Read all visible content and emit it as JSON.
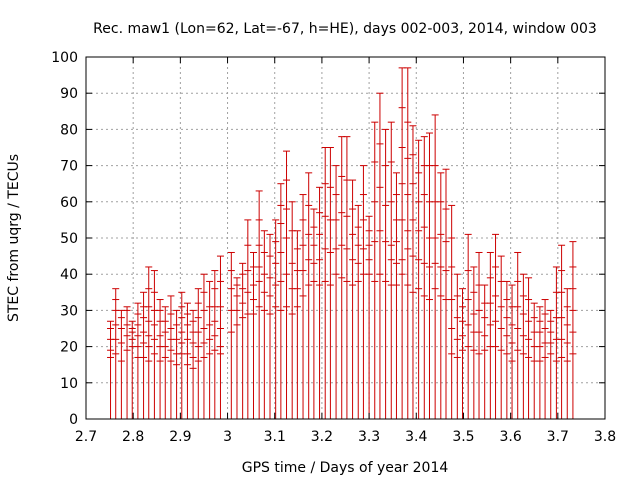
{
  "chart_data": {
    "type": "line",
    "title": "Rec. maw1 (Lon=62, Lat=-67, h=HE), days 002-003, 2014, window 003",
    "xlabel": "GPS time / Days of year 2014",
    "ylabel": "STEC from uqrg / TECUs",
    "xlim": [
      2.7,
      3.8
    ],
    "ylim": [
      0,
      100
    ],
    "xticks": [
      "2.7",
      "2.8",
      "2.9",
      "3",
      "3.1",
      "3.2",
      "3.3",
      "3.4",
      "3.5",
      "3.6",
      "3.7",
      "3.8"
    ],
    "yticks": [
      "0",
      "10",
      "20",
      "30",
      "40",
      "50",
      "60",
      "70",
      "80",
      "90",
      "100"
    ],
    "grid": true,
    "color": "#cc0000",
    "bars": [
      {
        "x": 2.752,
        "lo": 17,
        "hi": 27,
        "ticks": [
          17,
          19,
          22,
          25,
          27
        ]
      },
      {
        "x": 2.763,
        "lo": 18,
        "hi": 36,
        "ticks": [
          18,
          22,
          26,
          30,
          33,
          36
        ]
      },
      {
        "x": 2.775,
        "lo": 16,
        "hi": 30,
        "ticks": [
          16,
          21,
          25,
          28,
          30
        ]
      },
      {
        "x": 2.787,
        "lo": 19,
        "hi": 31,
        "ticks": [
          19,
          23,
          26,
          30,
          31
        ]
      },
      {
        "x": 2.798,
        "lo": 20,
        "hi": 27,
        "ticks": [
          20,
          22,
          24,
          25,
          27
        ]
      },
      {
        "x": 2.81,
        "lo": 17,
        "hi": 32,
        "ticks": [
          17,
          20,
          23,
          26,
          29,
          32
        ]
      },
      {
        "x": 2.822,
        "lo": 17,
        "hi": 35,
        "ticks": [
          17,
          21,
          24,
          28,
          31,
          35
        ]
      },
      {
        "x": 2.833,
        "lo": 16,
        "hi": 42,
        "ticks": [
          16,
          20,
          23,
          27,
          31,
          36,
          42
        ]
      },
      {
        "x": 2.845,
        "lo": 18,
        "hi": 41,
        "ticks": [
          18,
          22,
          26,
          30,
          35,
          41
        ]
      },
      {
        "x": 2.857,
        "lo": 16,
        "hi": 33,
        "ticks": [
          16,
          20,
          23,
          27,
          30,
          33
        ]
      },
      {
        "x": 2.868,
        "lo": 17,
        "hi": 31,
        "ticks": [
          17,
          20,
          24,
          27,
          31
        ]
      },
      {
        "x": 2.88,
        "lo": 16,
        "hi": 34,
        "ticks": [
          16,
          19,
          22,
          25,
          29,
          34
        ]
      },
      {
        "x": 2.892,
        "lo": 15,
        "hi": 30,
        "ticks": [
          15,
          18,
          22,
          26,
          30
        ]
      },
      {
        "x": 2.903,
        "lo": 18,
        "hi": 35,
        "ticks": [
          18,
          21,
          24,
          28,
          31,
          35
        ]
      },
      {
        "x": 2.915,
        "lo": 15,
        "hi": 32,
        "ticks": [
          15,
          18,
          22,
          26,
          29,
          32
        ]
      },
      {
        "x": 2.927,
        "lo": 14,
        "hi": 30,
        "ticks": [
          14,
          17,
          21,
          24,
          27,
          30
        ]
      },
      {
        "x": 2.938,
        "lo": 16,
        "hi": 36,
        "ticks": [
          16,
          20,
          24,
          28,
          32,
          36
        ]
      },
      {
        "x": 2.95,
        "lo": 17,
        "hi": 40,
        "ticks": [
          17,
          21,
          25,
          30,
          35,
          40
        ]
      },
      {
        "x": 2.962,
        "lo": 18,
        "hi": 38,
        "ticks": [
          18,
          22,
          26,
          31,
          38
        ]
      },
      {
        "x": 2.973,
        "lo": 19,
        "hi": 41,
        "ticks": [
          19,
          23,
          27,
          31,
          36,
          41
        ]
      },
      {
        "x": 2.985,
        "lo": 18,
        "hi": 45,
        "ticks": [
          18,
          20,
          25,
          31,
          38,
          45
        ]
      },
      {
        "x": 3.008,
        "lo": 24,
        "hi": 46,
        "ticks": [
          24,
          30,
          36,
          41,
          46
        ]
      },
      {
        "x": 3.02,
        "lo": 26,
        "hi": 39,
        "ticks": [
          26,
          30,
          34,
          37,
          39
        ]
      },
      {
        "x": 3.032,
        "lo": 28,
        "hi": 43,
        "ticks": [
          28,
          32,
          36,
          40,
          43
        ]
      },
      {
        "x": 3.043,
        "lo": 29,
        "hi": 55,
        "ticks": [
          29,
          35,
          41,
          48,
          55
        ]
      },
      {
        "x": 3.055,
        "lo": 29,
        "hi": 46,
        "ticks": [
          29,
          33,
          37,
          42,
          46
        ]
      },
      {
        "x": 3.067,
        "lo": 31,
        "hi": 63,
        "ticks": [
          31,
          38,
          42,
          48,
          55,
          63
        ]
      },
      {
        "x": 3.078,
        "lo": 30,
        "hi": 52,
        "ticks": [
          30,
          35,
          40,
          46,
          52
        ]
      },
      {
        "x": 3.09,
        "lo": 29,
        "hi": 51,
        "ticks": [
          29,
          34,
          39,
          45,
          51
        ]
      },
      {
        "x": 3.102,
        "lo": 31,
        "hi": 55,
        "ticks": [
          31,
          37,
          43,
          49,
          55
        ]
      },
      {
        "x": 3.113,
        "lo": 30,
        "hi": 65,
        "ticks": [
          30,
          38,
          46,
          54,
          59,
          65
        ]
      },
      {
        "x": 3.125,
        "lo": 31,
        "hi": 74,
        "ticks": [
          31,
          40,
          50,
          58,
          66,
          74
        ]
      },
      {
        "x": 3.137,
        "lo": 29,
        "hi": 60,
        "ticks": [
          29,
          36,
          43,
          52,
          60
        ]
      },
      {
        "x": 3.148,
        "lo": 31,
        "hi": 52,
        "ticks": [
          31,
          36,
          41,
          47,
          52
        ]
      },
      {
        "x": 3.16,
        "lo": 34,
        "hi": 62,
        "ticks": [
          34,
          41,
          48,
          55,
          62
        ]
      },
      {
        "x": 3.172,
        "lo": 37,
        "hi": 68,
        "ticks": [
          37,
          44,
          51,
          59,
          68
        ]
      },
      {
        "x": 3.183,
        "lo": 38,
        "hi": 58,
        "ticks": [
          38,
          43,
          48,
          53,
          58
        ]
      },
      {
        "x": 3.195,
        "lo": 37,
        "hi": 64,
        "ticks": [
          37,
          44,
          51,
          57,
          64
        ]
      },
      {
        "x": 3.207,
        "lo": 38,
        "hi": 75,
        "ticks": [
          38,
          47,
          56,
          65,
          75
        ]
      },
      {
        "x": 3.218,
        "lo": 37,
        "hi": 75,
        "ticks": [
          37,
          46,
          55,
          64,
          75
        ]
      },
      {
        "x": 3.23,
        "lo": 40,
        "hi": 70,
        "ticks": [
          40,
          47,
          55,
          62,
          70
        ]
      },
      {
        "x": 3.242,
        "lo": 39,
        "hi": 78,
        "ticks": [
          39,
          48,
          57,
          67,
          78
        ]
      },
      {
        "x": 3.253,
        "lo": 38,
        "hi": 78,
        "ticks": [
          38,
          47,
          56,
          66,
          78
        ]
      },
      {
        "x": 3.265,
        "lo": 37,
        "hi": 66,
        "ticks": [
          37,
          44,
          51,
          58,
          66
        ]
      },
      {
        "x": 3.277,
        "lo": 38,
        "hi": 59,
        "ticks": [
          38,
          43,
          48,
          53,
          59
        ]
      },
      {
        "x": 3.288,
        "lo": 40,
        "hi": 70,
        "ticks": [
          40,
          47,
          55,
          62,
          70
        ]
      },
      {
        "x": 3.3,
        "lo": 40,
        "hi": 56,
        "ticks": [
          40,
          44,
          48,
          52,
          56
        ]
      },
      {
        "x": 3.312,
        "lo": 38,
        "hi": 82,
        "ticks": [
          38,
          49,
          60,
          71,
          82
        ]
      },
      {
        "x": 3.323,
        "lo": 40,
        "hi": 90,
        "ticks": [
          40,
          52,
          64,
          76,
          90
        ]
      },
      {
        "x": 3.335,
        "lo": 38,
        "hi": 80,
        "ticks": [
          38,
          49,
          59,
          70,
          80
        ]
      },
      {
        "x": 3.347,
        "lo": 37,
        "hi": 82,
        "ticks": [
          37,
          44,
          48,
          60,
          71,
          82
        ]
      },
      {
        "x": 3.358,
        "lo": 37,
        "hi": 68,
        "ticks": [
          37,
          43,
          49,
          55,
          62,
          68
        ]
      },
      {
        "x": 3.37,
        "lo": 40,
        "hi": 97,
        "ticks": [
          40,
          44,
          55,
          65,
          75,
          86,
          97
        ]
      },
      {
        "x": 3.382,
        "lo": 37,
        "hi": 97,
        "ticks": [
          37,
          47,
          52,
          62,
          72,
          82,
          97
        ]
      },
      {
        "x": 3.393,
        "lo": 35,
        "hi": 81,
        "ticks": [
          35,
          45,
          55,
          65,
          73,
          81
        ]
      },
      {
        "x": 3.405,
        "lo": 36,
        "hi": 77,
        "ticks": [
          36,
          44,
          52,
          60,
          68,
          77
        ]
      },
      {
        "x": 3.417,
        "lo": 34,
        "hi": 78,
        "ticks": [
          34,
          43,
          53,
          62,
          70,
          78
        ]
      },
      {
        "x": 3.428,
        "lo": 33,
        "hi": 79,
        "ticks": [
          33,
          42,
          50,
          60,
          70,
          79
        ]
      },
      {
        "x": 3.44,
        "lo": 36,
        "hi": 84,
        "ticks": [
          36,
          43,
          50,
          60,
          70,
          84
        ]
      },
      {
        "x": 3.452,
        "lo": 34,
        "hi": 68,
        "ticks": [
          34,
          42,
          51,
          60,
          68
        ]
      },
      {
        "x": 3.463,
        "lo": 33,
        "hi": 69,
        "ticks": [
          33,
          41,
          49,
          58,
          69
        ]
      },
      {
        "x": 3.475,
        "lo": 18,
        "hi": 59,
        "ticks": [
          18,
          25,
          33,
          42,
          50,
          59
        ]
      },
      {
        "x": 3.487,
        "lo": 17,
        "hi": 40,
        "ticks": [
          17,
          22,
          28,
          34,
          40
        ]
      },
      {
        "x": 3.498,
        "lo": 19,
        "hi": 36,
        "ticks": [
          19,
          23,
          27,
          31,
          36
        ]
      },
      {
        "x": 3.51,
        "lo": 20,
        "hi": 51,
        "ticks": [
          20,
          26,
          33,
          41,
          51
        ]
      },
      {
        "x": 3.522,
        "lo": 19,
        "hi": 42,
        "ticks": [
          19,
          24,
          29,
          35,
          42
        ]
      },
      {
        "x": 3.533,
        "lo": 18,
        "hi": 46,
        "ticks": [
          18,
          24,
          30,
          37,
          46
        ]
      },
      {
        "x": 3.545,
        "lo": 19,
        "hi": 37,
        "ticks": [
          19,
          23,
          28,
          32,
          37
        ]
      },
      {
        "x": 3.557,
        "lo": 20,
        "hi": 46,
        "ticks": [
          20,
          26,
          32,
          39,
          46
        ]
      },
      {
        "x": 3.568,
        "lo": 20,
        "hi": 51,
        "ticks": [
          20,
          27,
          34,
          42,
          51
        ]
      },
      {
        "x": 3.58,
        "lo": 19,
        "hi": 45,
        "ticks": [
          19,
          25,
          31,
          38,
          45
        ]
      },
      {
        "x": 3.592,
        "lo": 18,
        "hi": 38,
        "ticks": [
          18,
          23,
          28,
          33,
          38
        ]
      },
      {
        "x": 3.603,
        "lo": 16,
        "hi": 37,
        "ticks": [
          16,
          21,
          26,
          31,
          37
        ]
      },
      {
        "x": 3.615,
        "lo": 19,
        "hi": 46,
        "ticks": [
          19,
          25,
          31,
          38,
          46
        ]
      },
      {
        "x": 3.627,
        "lo": 18,
        "hi": 40,
        "ticks": [
          18,
          23,
          29,
          34,
          40
        ]
      },
      {
        "x": 3.638,
        "lo": 17,
        "hi": 39,
        "ticks": [
          17,
          22,
          27,
          33,
          39
        ]
      },
      {
        "x": 3.65,
        "lo": 16,
        "hi": 32,
        "ticks": [
          16,
          20,
          24,
          28,
          32
        ]
      },
      {
        "x": 3.662,
        "lo": 16,
        "hi": 31,
        "ticks": [
          16,
          20,
          24,
          27,
          31
        ]
      },
      {
        "x": 3.673,
        "lo": 17,
        "hi": 33,
        "ticks": [
          17,
          21,
          25,
          29,
          33
        ]
      },
      {
        "x": 3.685,
        "lo": 18,
        "hi": 30,
        "ticks": [
          18,
          21,
          24,
          27,
          30
        ]
      },
      {
        "x": 3.697,
        "lo": 16,
        "hi": 42,
        "ticks": [
          16,
          22,
          28,
          35,
          42
        ]
      },
      {
        "x": 3.708,
        "lo": 17,
        "hi": 48,
        "ticks": [
          17,
          22,
          28,
          35,
          41,
          48
        ]
      },
      {
        "x": 3.72,
        "lo": 16,
        "hi": 36,
        "ticks": [
          16,
          21,
          26,
          31,
          36
        ]
      },
      {
        "x": 3.732,
        "lo": 18,
        "hi": 49,
        "ticks": [
          18,
          24,
          30,
          36,
          42,
          49
        ]
      }
    ]
  }
}
